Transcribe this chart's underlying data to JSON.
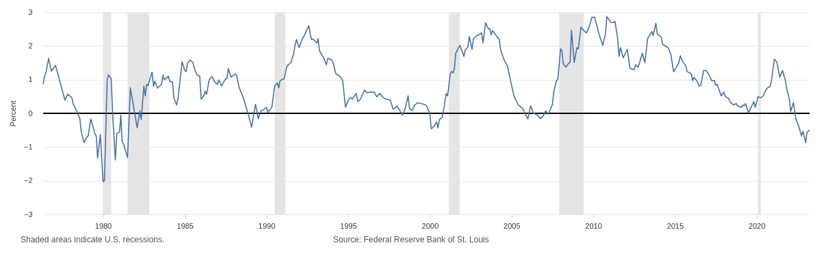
{
  "chart_data": {
    "type": "line",
    "ylabel": "Percent",
    "annotations": [
      "Shaded areas indicate U.S. recessions.",
      "Source: Federal Reserve Bank of St. Louis"
    ],
    "xlim": [
      "1976-05",
      "2023-04"
    ],
    "xticks": [
      "1980",
      "1985",
      "1990",
      "1995",
      "2000",
      "2005",
      "2010",
      "2015",
      "2020"
    ],
    "ylim": [
      -3,
      3
    ],
    "yticks": [
      -3,
      -2,
      -1,
      0,
      1,
      2,
      3
    ],
    "grid": "y",
    "bands": [
      {
        "axis": "x",
        "from": "1980-01",
        "to": "1980-07",
        "color": "#e5e5e5"
      },
      {
        "axis": "x",
        "from": "1981-07",
        "to": "1982-11",
        "color": "#e5e5e5"
      },
      {
        "axis": "x",
        "from": "1990-07",
        "to": "1991-03",
        "color": "#e5e5e5"
      },
      {
        "axis": "x",
        "from": "2001-03",
        "to": "2001-11",
        "color": "#e5e5e5"
      },
      {
        "axis": "x",
        "from": "2007-12",
        "to": "2009-06",
        "color": "#e5e5e5"
      },
      {
        "axis": "x",
        "from": "2020-02",
        "to": "2020-04",
        "color": "#e5e5e5"
      }
    ],
    "ref_lines": [
      {
        "axis": "y",
        "value": 0,
        "color": "#000000"
      }
    ],
    "series": [
      {
        "color": "#4572a7",
        "x": [
          "1976-05",
          "1976-06",
          "1976-07",
          "1976-09",
          "1976-11",
          "1977-02",
          "1977-04",
          "1977-07",
          "1977-09",
          "1977-11",
          "1978-02",
          "1978-03",
          "1978-05",
          "1978-08",
          "1978-09",
          "1978-11",
          "1979-01",
          "1979-02",
          "1979-04",
          "1979-07",
          "1979-08",
          "1979-09",
          "1979-10",
          "1979-11",
          "1980-01",
          "1980-02",
          "1980-04",
          "1980-05",
          "1980-07",
          "1980-08",
          "1980-10",
          "1980-11",
          "1981-01",
          "1981-02",
          "1981-03",
          "1981-04",
          "1981-07",
          "1981-09",
          "1982-02",
          "1982-04",
          "1982-05",
          "1982-07",
          "1982-08",
          "1982-09",
          "1982-10",
          "1983-01",
          "1983-02",
          "1983-03",
          "1983-05",
          "1983-08",
          "1983-09",
          "1983-10",
          "1984-01",
          "1984-02",
          "1984-04",
          "1984-05",
          "1984-07",
          "1984-08",
          "1984-11",
          "1985-01",
          "1985-02",
          "1985-03",
          "1985-05",
          "1985-07",
          "1985-08",
          "1985-10",
          "1985-12",
          "1986-01",
          "1986-03",
          "1986-04",
          "1986-05",
          "1986-07",
          "1986-09",
          "1986-11",
          "1987-01",
          "1987-02",
          "1987-04",
          "1987-07",
          "1987-08",
          "1987-09",
          "1987-11",
          "1988-02",
          "1988-03",
          "1988-05",
          "1988-08",
          "1988-09",
          "1988-12",
          "1989-02",
          "1989-03",
          "1989-05",
          "1989-07",
          "1989-09",
          "1989-10",
          "1990-01",
          "1990-02",
          "1990-05",
          "1990-07",
          "1990-09",
          "1990-10",
          "1990-11",
          "1991-02",
          "1991-04",
          "1991-07",
          "1991-09",
          "1991-10",
          "1991-11",
          "1992-01",
          "1992-03",
          "1992-05",
          "1992-08",
          "1992-10",
          "1992-11",
          "1993-02",
          "1993-03",
          "1993-04",
          "1993-07",
          "1993-09",
          "1993-10",
          "1994-01",
          "1994-02",
          "1994-04",
          "1994-07",
          "1994-09",
          "1994-11",
          "1995-01",
          "1995-03",
          "1995-04",
          "1995-07",
          "1995-08",
          "1995-10",
          "1996-01",
          "1996-03",
          "1996-05",
          "1996-08",
          "1996-10",
          "1996-12",
          "1997-03",
          "1997-05",
          "1997-08",
          "1997-10",
          "1998-01",
          "1998-03",
          "1998-05",
          "1998-07",
          "1998-09",
          "1998-10",
          "1998-12",
          "1999-02",
          "1999-04",
          "1999-07",
          "1999-10",
          "1999-11",
          "2000-01",
          "2000-02",
          "2000-04",
          "2000-06",
          "2000-07",
          "2000-08",
          "2000-10",
          "2000-11",
          "2001-01",
          "2001-02",
          "2001-04",
          "2001-05",
          "2001-06",
          "2001-07",
          "2001-08",
          "2001-11",
          "2002-02",
          "2002-03",
          "2002-05",
          "2002-06",
          "2002-08",
          "2002-09",
          "2002-11",
          "2003-02",
          "2003-03",
          "2003-04",
          "2003-06",
          "2003-08",
          "2003-09",
          "2003-10",
          "2003-11",
          "2004-01",
          "2004-04",
          "2004-05",
          "2004-08",
          "2004-10",
          "2005-01",
          "2005-03",
          "2005-06",
          "2005-09",
          "2005-11",
          "2006-01",
          "2006-03",
          "2006-05",
          "2006-08",
          "2006-10",
          "2006-12",
          "2007-02",
          "2007-04",
          "2007-07",
          "2007-08",
          "2007-10",
          "2007-11",
          "2008-01",
          "2008-02",
          "2008-03",
          "2008-05",
          "2008-07",
          "2008-08",
          "2008-09",
          "2008-11",
          "2009-01",
          "2009-02",
          "2009-04",
          "2009-06",
          "2009-08",
          "2009-10",
          "2009-12",
          "2010-02",
          "2010-04",
          "2010-05",
          "2010-08",
          "2010-10",
          "2010-11",
          "2011-02",
          "2011-04",
          "2011-05",
          "2011-07",
          "2011-08",
          "2011-09",
          "2011-11",
          "2012-02",
          "2012-04",
          "2012-07",
          "2012-08",
          "2012-10",
          "2013-01",
          "2013-03",
          "2013-05",
          "2013-08",
          "2013-09",
          "2013-11",
          "2013-12",
          "2014-03",
          "2014-04",
          "2014-08",
          "2014-10",
          "2014-12",
          "2015-02",
          "2015-04",
          "2015-05",
          "2015-07",
          "2015-09",
          "2015-10",
          "2016-01",
          "2016-02",
          "2016-03",
          "2016-05",
          "2016-07",
          "2016-08",
          "2016-10",
          "2016-12",
          "2017-02",
          "2017-04",
          "2017-06",
          "2017-07",
          "2017-08",
          "2017-11",
          "2018-01",
          "2018-02",
          "2018-04",
          "2018-06",
          "2018-08",
          "2018-10",
          "2018-11",
          "2019-02",
          "2019-03",
          "2019-04",
          "2019-05",
          "2019-07",
          "2019-09",
          "2019-11",
          "2019-12",
          "2020-02",
          "2020-04",
          "2020-06",
          "2020-07",
          "2020-09",
          "2020-11",
          "2020-12",
          "2021-02",
          "2021-04",
          "2021-06",
          "2021-08",
          "2021-10",
          "2021-11",
          "2022-01",
          "2022-02",
          "2022-04",
          "2022-06",
          "2022-08",
          "2022-10",
          "2022-11",
          "2023-01",
          "2023-02",
          "2023-04"
        ],
        "values": [
          0.86,
          1.1,
          1.2,
          1.63,
          1.25,
          1.42,
          1.15,
          0.69,
          0.39,
          0.57,
          0.47,
          0.29,
          0.12,
          -0.16,
          -0.56,
          -0.87,
          -0.7,
          -0.67,
          -0.17,
          -0.6,
          -0.67,
          -1.33,
          -0.97,
          -0.63,
          -2.03,
          -2.0,
          1.0,
          1.14,
          1.03,
          -0.02,
          -1.39,
          -0.6,
          -0.56,
          -0.05,
          -0.84,
          -0.9,
          -1.31,
          0.76,
          -0.43,
          0.07,
          -0.19,
          0.81,
          0.52,
          0.86,
          0.83,
          1.22,
          0.8,
          0.95,
          0.75,
          0.86,
          1.14,
          1.0,
          1.1,
          0.95,
          0.93,
          0.46,
          0.25,
          0.42,
          1.53,
          1.27,
          1.24,
          1.48,
          1.58,
          1.51,
          1.34,
          1.14,
          1.1,
          0.42,
          0.52,
          0.66,
          0.56,
          1.0,
          1.1,
          0.93,
          0.86,
          0.99,
          0.81,
          1.03,
          1.03,
          1.33,
          1.07,
          1.17,
          1.14,
          0.76,
          0.46,
          0.32,
          -0.09,
          -0.41,
          -0.19,
          0.27,
          -0.16,
          0.08,
          0.08,
          0.18,
          0.03,
          0.18,
          0.8,
          0.9,
          0.76,
          0.97,
          1.03,
          1.39,
          1.51,
          1.78,
          2.02,
          2.19,
          1.95,
          2.17,
          2.33,
          2.6,
          2.19,
          2.21,
          2.09,
          2.22,
          1.85,
          1.65,
          1.44,
          1.63,
          1.58,
          1.49,
          1.17,
          1.1,
          0.97,
          0.18,
          0.39,
          0.47,
          0.42,
          0.59,
          0.35,
          0.42,
          0.69,
          0.61,
          0.63,
          0.63,
          0.49,
          0.59,
          0.46,
          0.42,
          0.39,
          0.12,
          0.22,
          0.08,
          -0.05,
          0.15,
          0.52,
          0.15,
          0.08,
          0.25,
          0.31,
          0.29,
          0.25,
          0.18,
          -0.02,
          -0.46,
          -0.39,
          -0.26,
          -0.43,
          -0.19,
          -0.12,
          0.08,
          0.59,
          0.52,
          1.17,
          1.24,
          1.2,
          1.31,
          1.78,
          2.02,
          1.69,
          1.88,
          1.97,
          2.28,
          1.9,
          2.22,
          2.29,
          2.36,
          2.39,
          2.09,
          2.69,
          2.51,
          2.51,
          2.33,
          2.46,
          2.35,
          2.19,
          1.88,
          1.54,
          1.41,
          0.83,
          0.49,
          0.25,
          0.15,
          -0.02,
          -0.17,
          0.22,
          0.01,
          -0.05,
          -0.16,
          -0.09,
          0.07,
          -0.02,
          0.25,
          0.63,
          0.97,
          1.0,
          1.92,
          1.85,
          1.48,
          1.37,
          1.49,
          1.51,
          2.46,
          1.51,
          1.95,
          1.92,
          2.56,
          2.46,
          2.39,
          2.56,
          2.85,
          2.85,
          2.56,
          2.39,
          2.02,
          2.36,
          2.87,
          2.7,
          2.7,
          2.73,
          2.22,
          1.69,
          1.95,
          1.65,
          1.9,
          1.34,
          1.29,
          1.44,
          1.37,
          1.78,
          1.51,
          2.22,
          2.43,
          2.31,
          2.67,
          2.36,
          2.26,
          2.05,
          1.95,
          1.75,
          1.24,
          1.37,
          1.51,
          1.71,
          1.51,
          1.42,
          1.24,
          1.17,
          0.97,
          1.07,
          0.97,
          0.81,
          0.83,
          1.27,
          1.27,
          1.14,
          0.97,
          0.97,
          0.83,
          0.86,
          0.52,
          0.63,
          0.49,
          0.46,
          0.32,
          0.25,
          0.29,
          0.22,
          0.18,
          0.25,
          0.22,
          0.29,
          0.01,
          0.18,
          0.35,
          0.18,
          0.49,
          0.46,
          0.52,
          0.63,
          0.76,
          0.8,
          1.0,
          1.61,
          1.51,
          1.07,
          1.27,
          1.0,
          0.76,
          0.42,
          0.05,
          0.32,
          -0.19,
          -0.39,
          -0.67,
          -0.53,
          -0.87,
          -0.56,
          -0.5
        ]
      }
    ]
  }
}
